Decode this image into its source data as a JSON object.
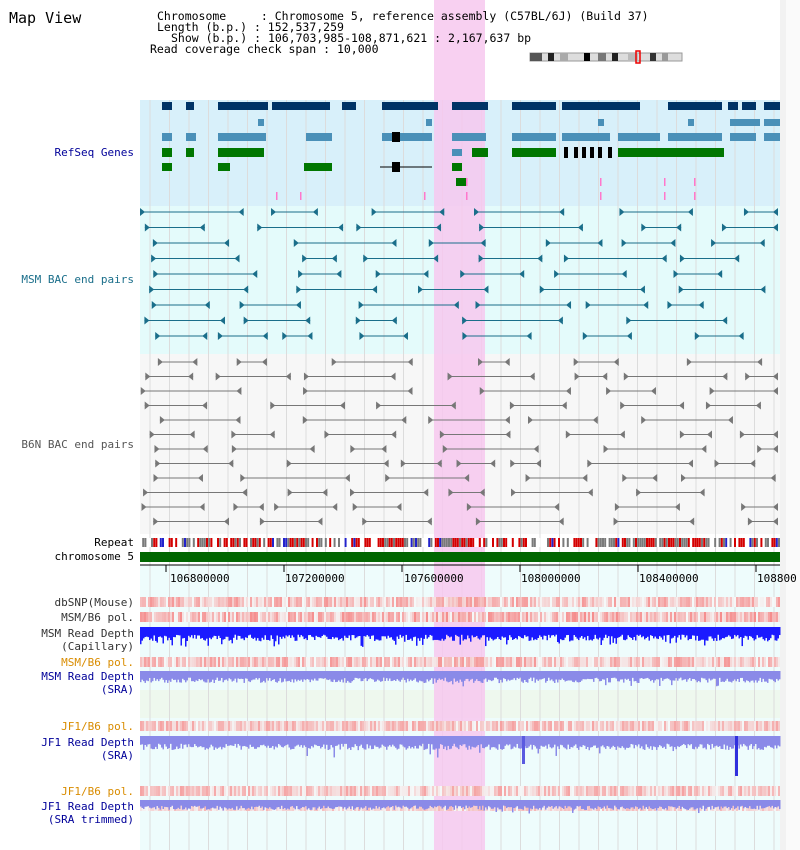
{
  "title": "Map View",
  "info": {
    "chromosome_label": "Chromosome",
    "chromosome_value": "Chromosome 5, reference assembly (C57BL/6J) (Build 37)",
    "length_label": "Length (b.p.)",
    "length_value": "152,537,259",
    "show_label": "Show (b.p.)",
    "show_value": "106,703,985-108,871,621 : 2,167,637 bp",
    "coverage_label": "Read coverage check span",
    "coverage_value": "10,000"
  },
  "tracks": {
    "refseq": "RefSeq Genes",
    "msm_bac": "MSM BAC end pairs",
    "b6n_bac": "B6N BAC end pairs",
    "repeat": "Repeat",
    "chromosome": "chromosome 5",
    "dbsnp": "dbSNP(Mouse)",
    "msm_b6_pol_1": "MSM/B6 pol.",
    "msm_read_depth_cap_1": "MSM Read Depth",
    "msm_read_depth_cap_2": "(Capillary)",
    "msm_b6_pol_2": "MSM/B6 pol.",
    "msm_read_depth_sra_1": "MSM Read Depth",
    "msm_read_depth_sra_2": "(SRA)",
    "jf1_b6_pol_1": "JF1/B6 pol.",
    "jf1_read_depth_sra_1": "JF1 Read Depth",
    "jf1_read_depth_sra_2": "(SRA)",
    "jf1_b6_pol_2": "JF1/B6 pol.",
    "jf1_read_depth_trim_1": "JF1 Read Depth",
    "jf1_read_depth_trim_2": "(SRA trimmed)"
  },
  "axis": {
    "ticks": [
      "106800000",
      "107200000",
      "107600000",
      "108000000",
      "108400000",
      "108800"
    ]
  },
  "colors": {
    "gene_dark": "#003366",
    "gene_mid": "#4a90b8",
    "gene_green": "#007700",
    "bac_msm": "#1a6e8a",
    "bac_b6n": "#777777",
    "highlight": "#f7c8ef",
    "refseq_bg": "#d8f0fa",
    "msm_bg": "#e4fbfb",
    "chromosome": "#006600",
    "depth_blue": "#1a1aff",
    "depth_light": "#8a8ae8",
    "label_blue": "#000099",
    "label_orange": "#d98c00"
  }
}
